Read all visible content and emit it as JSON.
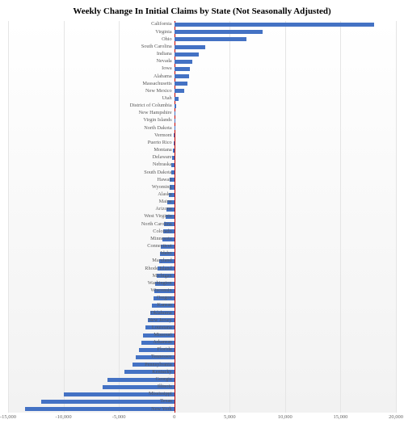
{
  "chart": {
    "type": "bar-horizontal",
    "title": "Weekly Change In Initial Claims by State (Not Seasonally Adjusted)",
    "title_fontsize": 11,
    "title_fontweight": "bold",
    "background_gradient_top": "#ffffff",
    "background_gradient_bottom": "#f2f2f2",
    "bar_color": "#4472c4",
    "zero_line_color": "#c00000",
    "grid_color": "#e5e5e5",
    "label_color": "#595959",
    "label_fontsize": 6.3,
    "xlim": [
      -15000,
      20000
    ],
    "xticks": [
      -15000,
      -10000,
      -5000,
      0,
      5000,
      10000,
      15000,
      20000
    ],
    "xtick_labels": [
      "-15,000",
      "-10,000",
      "-5,000",
      "0",
      "5,000",
      "10,000",
      "15,000",
      "20,000"
    ],
    "data": [
      {
        "label": "California",
        "value": 18000
      },
      {
        "label": "Virginia",
        "value": 8000
      },
      {
        "label": "Ohio",
        "value": 6500
      },
      {
        "label": "South Carolina",
        "value": 2800
      },
      {
        "label": "Indiana",
        "value": 2200
      },
      {
        "label": "Nevada",
        "value": 1600
      },
      {
        "label": "Iowa",
        "value": 1400
      },
      {
        "label": "Alabama",
        "value": 1300
      },
      {
        "label": "Massachusetts",
        "value": 1200
      },
      {
        "label": "New Mexico",
        "value": 900
      },
      {
        "label": "Utah",
        "value": 400
      },
      {
        "label": "District of Columbia",
        "value": 150
      },
      {
        "label": "New Hampshire",
        "value": 120
      },
      {
        "label": "Virgin Islands",
        "value": 80
      },
      {
        "label": "North Dakota",
        "value": 50
      },
      {
        "label": "Vermont",
        "value": -50
      },
      {
        "label": "Puerto Rico",
        "value": -80
      },
      {
        "label": "Montana",
        "value": -120
      },
      {
        "label": "Delaware",
        "value": -180
      },
      {
        "label": "Nebraska",
        "value": -250
      },
      {
        "label": "South Dakota",
        "value": -300
      },
      {
        "label": "Hawaii",
        "value": -400
      },
      {
        "label": "Wyoming",
        "value": -450
      },
      {
        "label": "Alaska",
        "value": -500
      },
      {
        "label": "Maine",
        "value": -600
      },
      {
        "label": "Arizona",
        "value": -700
      },
      {
        "label": "West Virginia",
        "value": -800
      },
      {
        "label": "North Carolina",
        "value": -900
      },
      {
        "label": "Colorado",
        "value": -1000
      },
      {
        "label": "Minnesota",
        "value": -1100
      },
      {
        "label": "Connecticut",
        "value": -1200
      },
      {
        "label": "Idaho",
        "value": -1300
      },
      {
        "label": "Maryland",
        "value": -1400
      },
      {
        "label": "Rhode Island",
        "value": -1500
      },
      {
        "label": "Michigan",
        "value": -1600
      },
      {
        "label": "Washington",
        "value": -1700
      },
      {
        "label": "Wisconsin",
        "value": -1800
      },
      {
        "label": "Oregon",
        "value": -1900
      },
      {
        "label": "Kansas",
        "value": -2000
      },
      {
        "label": "Oklahoma",
        "value": -2200
      },
      {
        "label": "New Jersey",
        "value": -2400
      },
      {
        "label": "Louisiana",
        "value": -2600
      },
      {
        "label": "Missouri",
        "value": -2800
      },
      {
        "label": "Arkansas",
        "value": -3000
      },
      {
        "label": "Florida",
        "value": -3200
      },
      {
        "label": "Tennessee",
        "value": -3500
      },
      {
        "label": "Pennsylvania",
        "value": -3800
      },
      {
        "label": "Kentucky",
        "value": -4500
      },
      {
        "label": "Georgia",
        "value": -6000
      },
      {
        "label": "Illinois",
        "value": -6500
      },
      {
        "label": "Mississippi",
        "value": -10000
      },
      {
        "label": "Texas",
        "value": -12000
      },
      {
        "label": "New York",
        "value": -13500
      }
    ]
  }
}
